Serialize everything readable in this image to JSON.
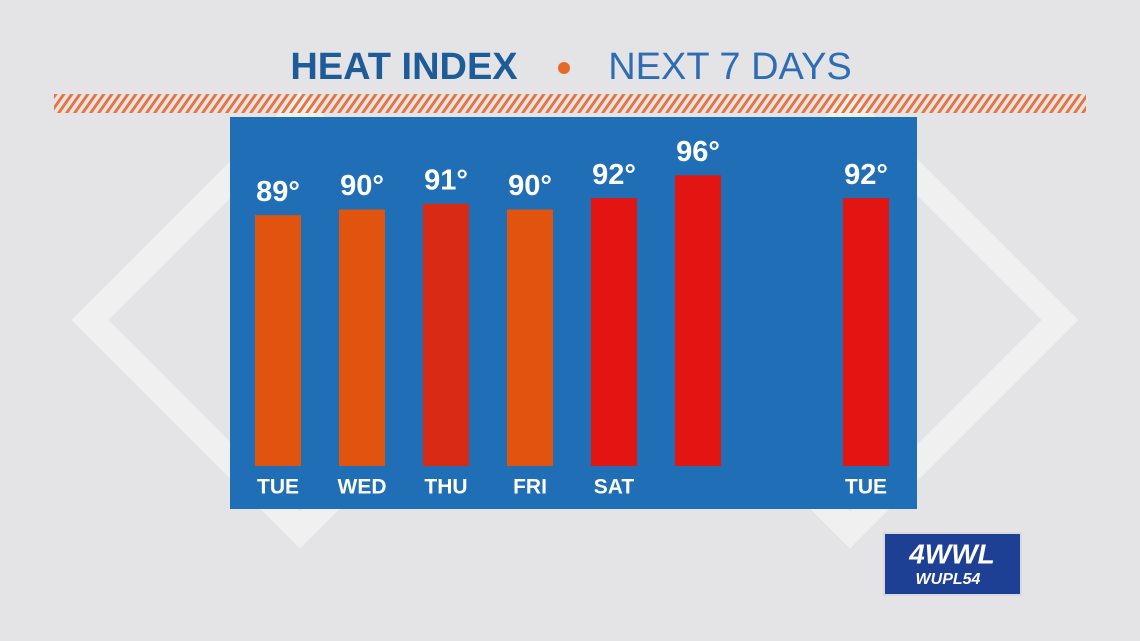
{
  "chart_data": {
    "type": "bar",
    "title": "HEAT INDEX",
    "subtitle": "NEXT 7 DAYS",
    "categories": [
      "TUE",
      "WED",
      "THU",
      "FRI",
      "SAT",
      null,
      null,
      "TUE"
    ],
    "values": [
      89,
      90,
      91,
      90,
      92,
      96,
      null,
      92
    ],
    "value_labels": [
      "89°",
      "90°",
      "91°",
      "90°",
      "92°",
      "96°",
      null,
      "92°"
    ],
    "colors": [
      "#e0540f",
      "#e0540f",
      "#d92b14",
      "#e0540f",
      "#e31512",
      "#e31512",
      "#e31512",
      "#e31512"
    ],
    "ylim": [
      45,
      100
    ]
  },
  "logo": {
    "main": "4WWL",
    "sub": "WUPL54"
  }
}
